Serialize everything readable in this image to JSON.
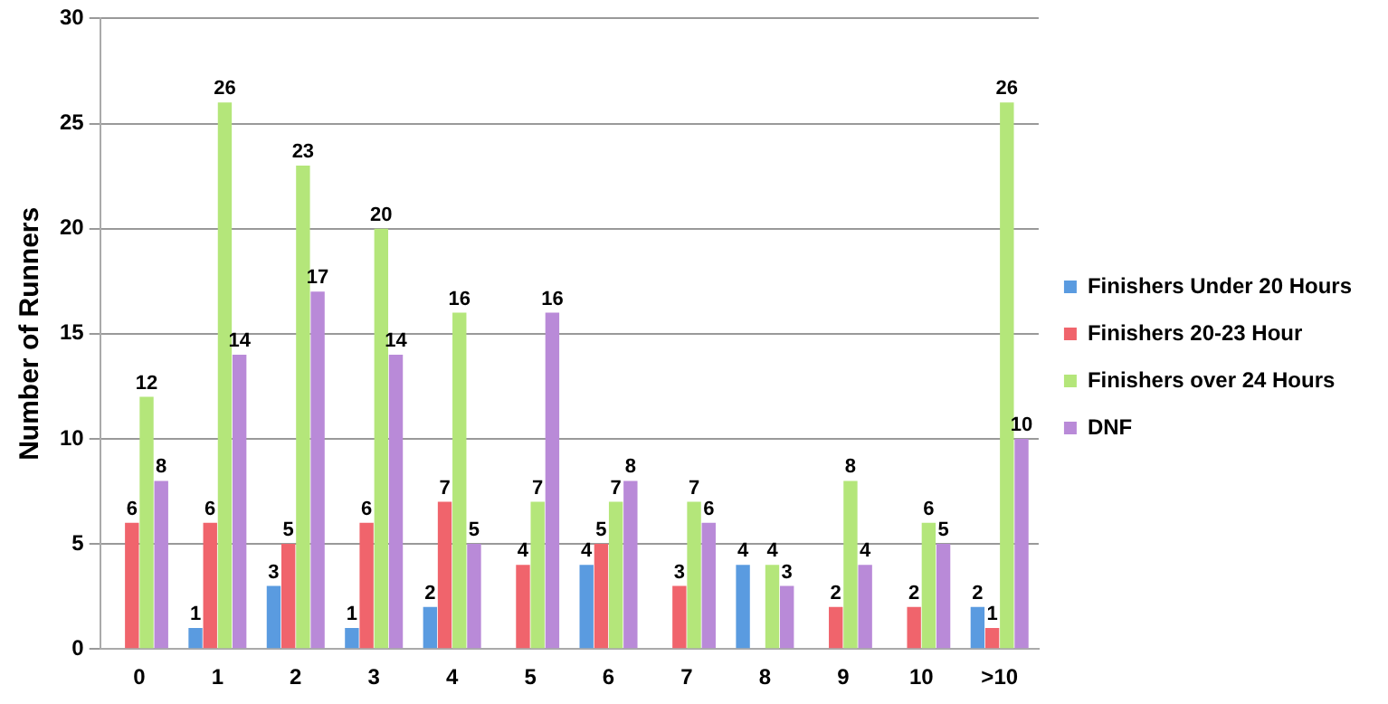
{
  "chart_data": {
    "type": "bar",
    "ylabel": "Number of Runners",
    "categories": [
      "0",
      "1",
      "2",
      "3",
      "4",
      "5",
      "6",
      "7",
      "8",
      "9",
      "10",
      ">10"
    ],
    "series": [
      {
        "name": "Finishers Under 20 Hours",
        "color": "#5a9be0",
        "values": [
          0,
          1,
          3,
          1,
          2,
          0,
          4,
          0,
          4,
          0,
          0,
          2
        ],
        "value_labels": [
          null,
          "1",
          "3",
          "1",
          "2",
          null,
          "4",
          null,
          "4",
          null,
          null,
          "2"
        ]
      },
      {
        "name": "Finishers 20-23 Hour",
        "color": "#f0646c",
        "values": [
          6,
          6,
          5,
          6,
          7,
          4,
          5,
          3,
          0,
          2,
          2,
          1
        ],
        "value_labels": [
          "6",
          "6",
          "5",
          "6",
          "7",
          "4",
          "5",
          "3",
          null,
          "2",
          "2",
          "1"
        ]
      },
      {
        "name": "Finishers over 24 Hours",
        "color": "#b4e67a",
        "values": [
          12,
          26,
          23,
          20,
          16,
          7,
          7,
          7,
          4,
          8,
          6,
          26
        ],
        "value_labels": [
          "12",
          "26",
          "23",
          "20",
          "16",
          "7",
          "7",
          "7",
          "4",
          "8",
          "6",
          "26"
        ]
      },
      {
        "name": "DNF",
        "color": "#b98ad8",
        "values": [
          8,
          14,
          17,
          14,
          5,
          16,
          8,
          6,
          3,
          4,
          5,
          10
        ],
        "value_labels": [
          "8",
          "14",
          "17",
          "14",
          "5",
          "16",
          "8",
          "6",
          "3",
          "4",
          "5",
          "10"
        ]
      }
    ],
    "ylim": [
      0,
      30
    ],
    "yticks": [
      0,
      5,
      10,
      15,
      20,
      25,
      30
    ],
    "grid": "y",
    "legend": "right"
  }
}
